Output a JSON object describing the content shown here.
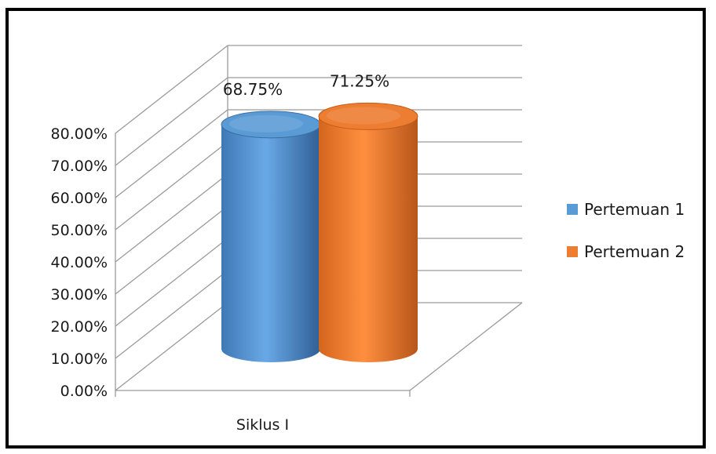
{
  "chart_data": {
    "type": "bar",
    "style": "3d-cylinder",
    "categories": [
      "Siklus I"
    ],
    "series": [
      {
        "name": "Pertemuan 1",
        "values": [
          68.75
        ],
        "data_label": "68.75%",
        "color": "#5b9bd5"
      },
      {
        "name": "Pertemuan 2",
        "values": [
          71.25
        ],
        "data_label": "71.25%",
        "color": "#ed7d31"
      }
    ],
    "ylim": [
      0,
      80
    ],
    "y_ticks": [
      {
        "value": 0,
        "label": "0.00%"
      },
      {
        "value": 10,
        "label": "10.00%"
      },
      {
        "value": 20,
        "label": "20.00%"
      },
      {
        "value": 30,
        "label": "30.00%"
      },
      {
        "value": 40,
        "label": "40.00%"
      },
      {
        "value": 50,
        "label": "50.00%"
      },
      {
        "value": 60,
        "label": "60.00%"
      },
      {
        "value": 70,
        "label": "70.00%"
      },
      {
        "value": 80,
        "label": "80.00%"
      }
    ],
    "grid": true,
    "legend": "right",
    "title": "",
    "xlabel": "",
    "ylabel": ""
  }
}
